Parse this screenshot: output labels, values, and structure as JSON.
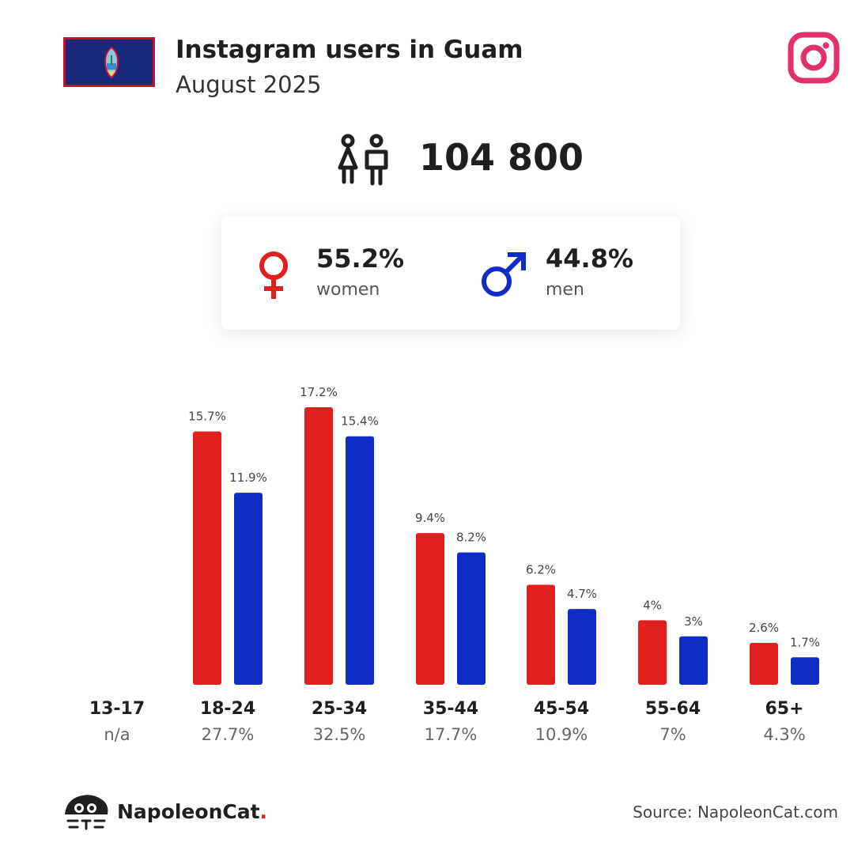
{
  "header": {
    "title": "Instagram users in Guam",
    "subtitle": "August 2025"
  },
  "total": {
    "value": "104 800"
  },
  "gender": {
    "women": {
      "pct": "55.2%",
      "label": "women",
      "color": "#e0201f"
    },
    "men": {
      "pct": "44.8%",
      "label": "men",
      "color": "#0f2cc4"
    }
  },
  "age_groups": [
    {
      "name": "13-17",
      "share": "n/a"
    },
    {
      "name": "18-24",
      "share": "27.7%"
    },
    {
      "name": "25-34",
      "share": "32.5%"
    },
    {
      "name": "35-44",
      "share": "17.7%"
    },
    {
      "name": "45-54",
      "share": "10.9%"
    },
    {
      "name": "55-64",
      "share": "7%"
    },
    {
      "name": "65+",
      "share": "4.3%"
    }
  ],
  "chart_data": {
    "type": "bar",
    "categories": [
      "13-17",
      "18-24",
      "25-34",
      "35-44",
      "45-54",
      "55-64",
      "65+"
    ],
    "series": [
      {
        "name": "women",
        "color": "#e0201f",
        "values": [
          null,
          15.7,
          17.2,
          9.4,
          6.2,
          4,
          2.6
        ],
        "labels": [
          "",
          "15.7%",
          "17.2%",
          "9.4%",
          "6.2%",
          "4%",
          "2.6%"
        ]
      },
      {
        "name": "men",
        "color": "#0f2cc4",
        "values": [
          null,
          11.9,
          15.4,
          8.2,
          4.7,
          3,
          1.7
        ],
        "labels": [
          "",
          "11.9%",
          "15.4%",
          "8.2%",
          "4.7%",
          "3%",
          "1.7%"
        ]
      }
    ],
    "ylim": [
      0,
      17.2
    ],
    "grid": false
  },
  "footer": {
    "brand": "NapoleonCat",
    "brand_dot": ".",
    "source": "Source: NapoleonCat.com"
  },
  "colors": {
    "instagram": "#e1306c",
    "flag_bg": "#16297a",
    "flag_border": "#c8102e"
  },
  "icons": {
    "flag": "guam-flag-icon",
    "instagram": "instagram-icon",
    "people": "people-icon",
    "female": "female-symbol-icon",
    "male": "male-symbol-icon",
    "logo": "napoleoncat-logo-icon"
  }
}
